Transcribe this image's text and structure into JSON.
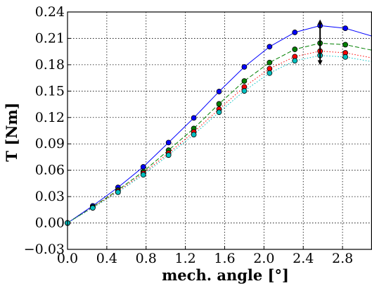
{
  "chart_data": {
    "type": "line",
    "xlabel": "mech. angle [°]",
    "ylabel": "T [Nm]",
    "xlim": [
      0.0,
      3.1
    ],
    "ylim": [
      -0.03,
      0.24
    ],
    "xticks": [
      "0.0",
      "0.4",
      "0.8",
      "1.2",
      "1.6",
      "2.0",
      "2.4",
      "2.8"
    ],
    "xtick_values": [
      0.0,
      0.4,
      0.8,
      1.2,
      1.6,
      2.0,
      2.4,
      2.8
    ],
    "yticks": [
      "−0.03",
      "0.00",
      "0.03",
      "0.06",
      "0.09",
      "0.12",
      "0.15",
      "0.18",
      "0.21",
      "0.24"
    ],
    "ytick_values": [
      -0.03,
      0.0,
      0.03,
      0.06,
      0.09,
      0.12,
      0.15,
      0.18,
      0.21,
      0.24
    ],
    "grid": true,
    "x": [
      0.0,
      0.2571,
      0.5143,
      0.7714,
      1.0286,
      1.2857,
      1.5429,
      1.8,
      2.0571,
      2.3143,
      2.5714,
      2.8286
    ],
    "series": [
      {
        "color": "#0000ff",
        "dash": "solid",
        "line": [
          [
            0.0,
            0.0
          ],
          [
            0.2571,
            0.0195
          ],
          [
            0.5143,
            0.0405
          ],
          [
            0.7714,
            0.0638
          ],
          [
            1.0286,
            0.0915
          ],
          [
            1.2857,
            0.1195
          ],
          [
            1.5429,
            0.1495
          ],
          [
            1.8,
            0.1775
          ],
          [
            2.0571,
            0.2005
          ],
          [
            2.3143,
            0.2168
          ],
          [
            2.5714,
            0.2245
          ],
          [
            2.8286,
            0.2215
          ],
          [
            3.1,
            0.2125
          ]
        ],
        "markers": [
          0.0,
          0.0195,
          0.0405,
          0.0638,
          0.0915,
          0.1195,
          0.1495,
          0.1775,
          0.2005,
          0.2168,
          0.2245,
          0.2215
        ]
      },
      {
        "color": "#008000",
        "dash": "dashed",
        "line": [
          [
            0.0,
            0.0
          ],
          [
            0.2571,
            0.0182
          ],
          [
            0.5143,
            0.0375
          ],
          [
            0.7714,
            0.0585
          ],
          [
            1.0286,
            0.0828
          ],
          [
            1.2857,
            0.1075
          ],
          [
            1.5429,
            0.1355
          ],
          [
            1.8,
            0.1615
          ],
          [
            2.0571,
            0.1825
          ],
          [
            2.3143,
            0.1975
          ],
          [
            2.5714,
            0.2045
          ],
          [
            2.8286,
            0.2028
          ],
          [
            3.1,
            0.1965
          ]
        ],
        "markers": [
          0.0,
          0.0182,
          0.0375,
          0.0585,
          0.0828,
          0.1075,
          0.1355,
          0.1615,
          0.1825,
          0.1975,
          0.2045,
          0.2028
        ]
      },
      {
        "color": "#ff0000",
        "dash": "dotted",
        "line": [
          [
            0.0,
            0.0
          ],
          [
            0.2571,
            0.0178
          ],
          [
            0.5143,
            0.0362
          ],
          [
            0.7714,
            0.0565
          ],
          [
            1.0286,
            0.0795
          ],
          [
            1.2857,
            0.1035
          ],
          [
            1.5429,
            0.1295
          ],
          [
            1.8,
            0.1548
          ],
          [
            2.0571,
            0.1755
          ],
          [
            2.3143,
            0.1892
          ],
          [
            2.5714,
            0.1955
          ],
          [
            2.8286,
            0.1935
          ],
          [
            3.1,
            0.1878
          ]
        ],
        "markers": [
          0.0,
          0.0178,
          0.0362,
          0.0565,
          0.0795,
          0.1035,
          0.1295,
          0.1548,
          0.1755,
          0.1892,
          0.1955,
          0.1935
        ]
      },
      {
        "color": "#00bfbf",
        "dash": "dotted",
        "line": [
          [
            0.0,
            0.0
          ],
          [
            0.2571,
            0.0172
          ],
          [
            0.5143,
            0.035
          ],
          [
            0.7714,
            0.0548
          ],
          [
            1.0286,
            0.0772
          ],
          [
            1.2857,
            0.1005
          ],
          [
            1.5429,
            0.126
          ],
          [
            1.8,
            0.1502
          ],
          [
            2.0571,
            0.1705
          ],
          [
            2.3143,
            0.1845
          ],
          [
            2.5714,
            0.1905
          ],
          [
            2.8286,
            0.1888
          ],
          [
            3.1,
            0.1835
          ]
        ],
        "markers": [
          0.0,
          0.0172,
          0.035,
          0.0548,
          0.0772,
          0.1005,
          0.126,
          0.1502,
          0.1705,
          0.1845,
          0.1905,
          0.1888
        ]
      }
    ],
    "annotations": [
      {
        "type": "double-arrow",
        "x": 2.5714,
        "y_from": 0.2315,
        "y_to": 0.1795,
        "color": "#000000"
      }
    ]
  }
}
